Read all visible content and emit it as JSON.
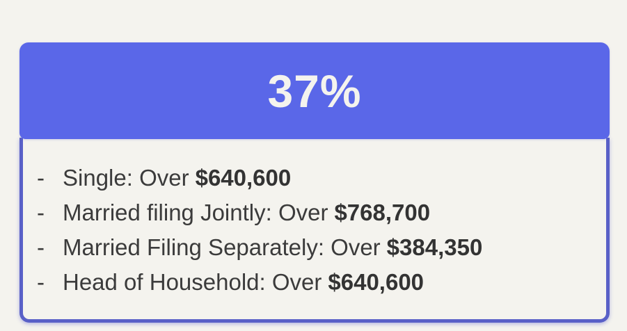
{
  "page": {
    "background_color": "#f4f3ee"
  },
  "card": {
    "header": {
      "rate": "37%",
      "background_color": "#5a67e8",
      "text_color": "#f4f3ee"
    },
    "body": {
      "border_color": "#5960c7",
      "text_color": "#3b3b3b",
      "items": [
        {
          "bullet": "-",
          "label": "Single: Over",
          "amount": "$640,600"
        },
        {
          "bullet": "-",
          "label": "Married filing Jointly: Over",
          "amount": "$768,700"
        },
        {
          "bullet": "-",
          "label": "Married Filing Separately: Over",
          "amount": "$384,350"
        },
        {
          "bullet": "-",
          "label": "Head of Household: Over",
          "amount": "$640,600"
        }
      ]
    }
  }
}
